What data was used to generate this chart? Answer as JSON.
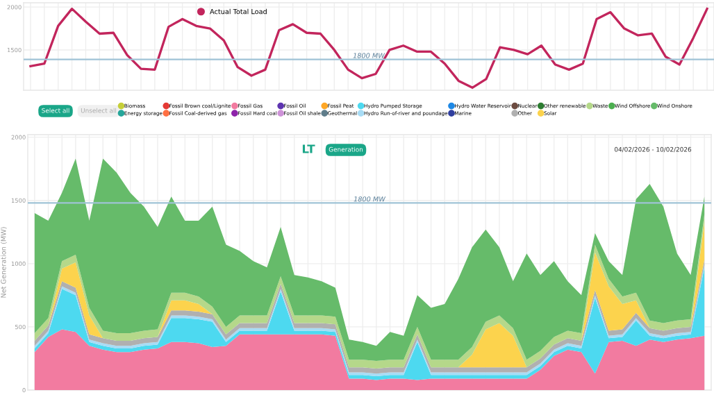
{
  "chart_data": [
    {
      "type": "line",
      "categories": [
        null,
        null,
        null,
        null,
        null,
        null,
        null,
        null,
        null,
        null,
        null,
        null,
        null,
        null,
        null,
        null,
        null,
        null,
        null,
        null,
        null,
        null,
        null,
        null,
        null,
        null,
        null,
        null,
        null,
        null,
        null,
        null,
        null,
        null,
        null,
        null,
        null,
        null,
        null,
        null,
        null,
        null,
        null,
        null,
        null,
        null,
        null,
        null,
        null,
        null
      ],
      "series": [
        {
          "name": "Actual Total Load",
          "color": "#c2255c",
          "values": [
            1310,
            1340,
            1780,
            1980,
            1830,
            1690,
            1700,
            1440,
            1280,
            1270,
            1770,
            1860,
            1780,
            1750,
            1610,
            1300,
            1200,
            1270,
            1730,
            1800,
            1700,
            1690,
            1500,
            1270,
            1170,
            1220,
            1500,
            1550,
            1480,
            1480,
            1340,
            1140,
            1060,
            1160,
            1530,
            1500,
            1450,
            1550,
            1330,
            1270,
            1340,
            1860,
            1940,
            1750,
            1670,
            1690,
            1420,
            1330,
            1640,
            1980
          ]
        }
      ],
      "ylim": [
        1030,
        2050
      ],
      "yticks": [
        1500,
        2000
      ],
      "ref_lines": [
        {
          "axis": "y",
          "value": 1390,
          "label": "1800 MW",
          "color": "#9fc3d6"
        }
      ],
      "grid": true,
      "legend": "top",
      "marker": "none",
      "line_style": "solid"
    },
    {
      "type": "area",
      "stacked": true,
      "ylabel": "Net Generation (MW)",
      "categories": [
        null,
        null,
        null,
        null,
        null,
        null,
        null,
        null,
        null,
        null,
        null,
        null,
        null,
        null,
        null,
        null,
        null,
        null,
        null,
        null,
        null,
        null,
        null,
        null,
        null,
        null,
        null,
        null,
        null,
        null,
        null,
        null,
        null,
        null,
        null,
        null,
        null,
        null,
        null,
        null,
        null,
        null,
        null,
        null,
        null,
        null,
        null,
        null,
        null,
        null
      ],
      "series": [
        {
          "name": "Biomass",
          "color": "#c6cf3a",
          "values": [
            null,
            null,
            null,
            null,
            null,
            null,
            null,
            null,
            null,
            null,
            null,
            null,
            null,
            null,
            null,
            null,
            null,
            null,
            null,
            null,
            null,
            null,
            null,
            null,
            null,
            null,
            null,
            null,
            null,
            null,
            null,
            null,
            null,
            null,
            null,
            null,
            null,
            null,
            null,
            null,
            null,
            null,
            null,
            null,
            null,
            null,
            null,
            null,
            null,
            null
          ]
        },
        {
          "name": "Energy storage",
          "color": "#26a69a",
          "values": [
            null,
            null,
            null,
            null,
            null,
            null,
            null,
            null,
            null,
            null,
            null,
            null,
            null,
            null,
            null,
            null,
            null,
            null,
            null,
            null,
            null,
            null,
            null,
            null,
            null,
            null,
            null,
            null,
            null,
            null,
            null,
            null,
            null,
            null,
            null,
            null,
            null,
            null,
            null,
            null,
            null,
            null,
            null,
            null,
            null,
            null,
            null,
            null,
            null,
            null
          ]
        },
        {
          "name": "Fossil Brown coal/Lignite",
          "color": "#e53935",
          "values": [
            null,
            null,
            null,
            null,
            null,
            null,
            null,
            null,
            null,
            null,
            null,
            null,
            null,
            null,
            null,
            null,
            null,
            null,
            null,
            null,
            null,
            null,
            null,
            null,
            null,
            null,
            null,
            null,
            null,
            null,
            null,
            null,
            null,
            null,
            null,
            null,
            null,
            null,
            null,
            null,
            null,
            null,
            null,
            null,
            null,
            null,
            null,
            null,
            null,
            null
          ]
        },
        {
          "name": "Fossil Coal-derived gas",
          "color": "#ff7043",
          "values": [
            null,
            null,
            null,
            null,
            null,
            null,
            null,
            null,
            null,
            null,
            null,
            null,
            null,
            null,
            null,
            null,
            null,
            null,
            null,
            null,
            null,
            null,
            null,
            null,
            null,
            null,
            null,
            null,
            null,
            null,
            null,
            null,
            null,
            null,
            null,
            null,
            null,
            null,
            null,
            null,
            null,
            null,
            null,
            null,
            null,
            null,
            null,
            null,
            null,
            null
          ]
        },
        {
          "name": "Fossil Gas",
          "color": "#f27ba0",
          "values": [
            300,
            420,
            480,
            460,
            350,
            320,
            300,
            300,
            320,
            330,
            380,
            380,
            370,
            340,
            350,
            440,
            440,
            440,
            440,
            440,
            440,
            440,
            430,
            90,
            90,
            80,
            90,
            90,
            80,
            90,
            90,
            90,
            90,
            90,
            90,
            90,
            90,
            160,
            270,
            320,
            300,
            130,
            380,
            390,
            350,
            400,
            380,
            400,
            410,
            430
          ]
        },
        {
          "name": "Fossil Hard coal",
          "color": "#8e24aa",
          "values": [
            null,
            null,
            null,
            null,
            null,
            null,
            null,
            null,
            null,
            null,
            null,
            null,
            null,
            null,
            null,
            null,
            null,
            null,
            null,
            null,
            null,
            null,
            null,
            null,
            null,
            null,
            null,
            null,
            null,
            null,
            null,
            null,
            null,
            null,
            null,
            null,
            null,
            null,
            null,
            null,
            null,
            null,
            null,
            null,
            null,
            null,
            null,
            null,
            null,
            null
          ]
        },
        {
          "name": "Fossil Oil",
          "color": "#5e35b1",
          "values": [
            null,
            null,
            null,
            null,
            null,
            null,
            null,
            null,
            null,
            null,
            null,
            null,
            null,
            null,
            null,
            null,
            null,
            null,
            null,
            null,
            null,
            null,
            null,
            null,
            null,
            null,
            null,
            null,
            null,
            null,
            null,
            null,
            null,
            null,
            null,
            null,
            null,
            null,
            null,
            null,
            null,
            null,
            null,
            null,
            null,
            null,
            null,
            null,
            null,
            null
          ]
        },
        {
          "name": "Fossil Oil shale",
          "color": "#ce93d8",
          "values": [
            null,
            null,
            null,
            null,
            null,
            null,
            null,
            null,
            null,
            null,
            null,
            null,
            null,
            null,
            null,
            null,
            null,
            null,
            null,
            null,
            null,
            null,
            null,
            null,
            null,
            null,
            null,
            null,
            null,
            null,
            null,
            null,
            null,
            null,
            null,
            null,
            null,
            null,
            null,
            null,
            null,
            null,
            null,
            null,
            null,
            null,
            null,
            null,
            null,
            null
          ]
        },
        {
          "name": "Fossil Peat",
          "color": "#ffa726",
          "values": [
            null,
            null,
            null,
            null,
            null,
            null,
            null,
            null,
            null,
            null,
            null,
            null,
            null,
            null,
            null,
            null,
            null,
            null,
            null,
            null,
            null,
            null,
            null,
            null,
            null,
            null,
            null,
            null,
            null,
            null,
            null,
            null,
            null,
            null,
            null,
            null,
            null,
            null,
            null,
            null,
            null,
            null,
            null,
            null,
            null,
            null,
            null,
            null,
            null,
            null
          ]
        },
        {
          "name": "Geothermal",
          "color": "#607d8b",
          "values": [
            null,
            null,
            null,
            null,
            null,
            null,
            null,
            null,
            null,
            null,
            null,
            null,
            null,
            null,
            null,
            null,
            null,
            null,
            null,
            null,
            null,
            null,
            null,
            null,
            null,
            null,
            null,
            null,
            null,
            null,
            null,
            null,
            null,
            null,
            null,
            null,
            null,
            null,
            null,
            null,
            null,
            null,
            null,
            null,
            null,
            null,
            null,
            null,
            null,
            null
          ]
        },
        {
          "name": "Hydro Pumped Storage",
          "color": "#4dd9f0",
          "values": [
            30,
            30,
            320,
            290,
            30,
            30,
            30,
            30,
            30,
            30,
            190,
            190,
            190,
            200,
            30,
            30,
            30,
            30,
            340,
            30,
            30,
            30,
            30,
            30,
            30,
            30,
            30,
            30,
            300,
            30,
            30,
            30,
            30,
            30,
            30,
            30,
            30,
            30,
            30,
            30,
            30,
            600,
            30,
            30,
            200,
            30,
            30,
            30,
            30,
            540
          ]
        },
        {
          "name": "Hydro Run-of-river and poundage",
          "color": "#a8dcf5",
          "values": [
            20,
            20,
            20,
            20,
            20,
            20,
            20,
            20,
            20,
            20,
            20,
            20,
            20,
            20,
            20,
            20,
            20,
            20,
            20,
            20,
            20,
            20,
            20,
            20,
            20,
            20,
            20,
            20,
            20,
            20,
            20,
            20,
            20,
            20,
            20,
            20,
            20,
            20,
            20,
            20,
            20,
            20,
            20,
            20,
            20,
            20,
            20,
            20,
            20,
            20
          ]
        },
        {
          "name": "Hydro Water Reservoir",
          "color": "#1e88e5",
          "values": [
            null,
            null,
            null,
            null,
            null,
            null,
            null,
            null,
            null,
            null,
            null,
            null,
            null,
            null,
            null,
            null,
            null,
            null,
            null,
            null,
            null,
            null,
            null,
            null,
            null,
            null,
            null,
            null,
            null,
            null,
            null,
            null,
            null,
            null,
            null,
            null,
            null,
            null,
            null,
            null,
            null,
            null,
            null,
            null,
            null,
            null,
            null,
            null,
            null,
            null
          ]
        },
        {
          "name": "Marine",
          "color": "#303f9f",
          "values": [
            null,
            null,
            null,
            null,
            null,
            null,
            null,
            null,
            null,
            null,
            null,
            null,
            null,
            null,
            null,
            null,
            null,
            null,
            null,
            null,
            null,
            null,
            null,
            null,
            null,
            null,
            null,
            null,
            null,
            null,
            null,
            null,
            null,
            null,
            null,
            null,
            null,
            null,
            null,
            null,
            null,
            null,
            null,
            null,
            null,
            null,
            null,
            null,
            null,
            null
          ]
        },
        {
          "name": "Nuclear",
          "color": "#6d4c41",
          "values": [
            null,
            null,
            null,
            null,
            null,
            null,
            null,
            null,
            null,
            null,
            null,
            null,
            null,
            null,
            null,
            null,
            null,
            null,
            null,
            null,
            null,
            null,
            null,
            null,
            null,
            null,
            null,
            null,
            null,
            null,
            null,
            null,
            null,
            null,
            null,
            null,
            null,
            null,
            null,
            null,
            null,
            null,
            null,
            null,
            null,
            null,
            null,
            null,
            null,
            null
          ]
        },
        {
          "name": "Other",
          "color": "#b0b0b0",
          "values": [
            40,
            40,
            40,
            40,
            40,
            40,
            40,
            40,
            40,
            40,
            40,
            40,
            40,
            40,
            40,
            40,
            40,
            40,
            40,
            40,
            40,
            40,
            40,
            40,
            40,
            40,
            40,
            40,
            40,
            40,
            40,
            40,
            40,
            40,
            40,
            40,
            40,
            40,
            40,
            40,
            40,
            40,
            40,
            40,
            40,
            40,
            40,
            40,
            40,
            40
          ]
        },
        {
          "name": "Other renewable",
          "color": "#2e7d32",
          "values": [
            null,
            null,
            null,
            null,
            null,
            null,
            null,
            null,
            null,
            null,
            null,
            null,
            null,
            null,
            null,
            null,
            null,
            null,
            null,
            null,
            null,
            null,
            null,
            null,
            null,
            null,
            null,
            null,
            null,
            null,
            null,
            null,
            null,
            null,
            null,
            null,
            null,
            null,
            null,
            null,
            null,
            null,
            null,
            null,
            null,
            null,
            null,
            null,
            null,
            null
          ]
        },
        {
          "name": "Solar",
          "color": "#fcd34d",
          "values": [
            0,
            0,
            100,
            200,
            150,
            0,
            0,
            0,
            0,
            0,
            80,
            80,
            60,
            0,
            0,
            0,
            0,
            0,
            0,
            0,
            0,
            0,
            0,
            0,
            0,
            0,
            0,
            0,
            0,
            0,
            0,
            0,
            100,
            300,
            350,
            250,
            0,
            0,
            0,
            0,
            0,
            300,
            350,
            200,
            100,
            0,
            0,
            0,
            0,
            300
          ]
        },
        {
          "name": "Waste",
          "color": "#b5d88a",
          "values": [
            60,
            60,
            60,
            60,
            60,
            60,
            60,
            60,
            60,
            60,
            60,
            60,
            60,
            60,
            60,
            60,
            60,
            60,
            60,
            60,
            60,
            60,
            60,
            60,
            60,
            60,
            60,
            60,
            60,
            60,
            60,
            60,
            60,
            60,
            60,
            60,
            60,
            60,
            60,
            60,
            60,
            60,
            60,
            60,
            60,
            60,
            60,
            60,
            60,
            60
          ]
        },
        {
          "name": "Wind Offshore",
          "color": "#4caf50",
          "values": [
            null,
            null,
            null,
            null,
            null,
            null,
            null,
            null,
            null,
            null,
            null,
            null,
            null,
            null,
            null,
            null,
            null,
            null,
            null,
            null,
            null,
            null,
            null,
            null,
            null,
            null,
            null,
            null,
            null,
            null,
            null,
            null,
            null,
            null,
            null,
            null,
            null,
            null,
            null,
            null,
            null,
            null,
            null,
            null,
            null,
            null,
            null,
            null,
            null,
            null
          ]
        },
        {
          "name": "Wind Onshore",
          "color": "#66bb6a",
          "values": [
            950,
            770,
            540,
            760,
            690,
            1360,
            1270,
            1110,
            980,
            810,
            760,
            570,
            600,
            790,
            650,
            510,
            430,
            380,
            390,
            320,
            300,
            270,
            230,
            160,
            140,
            120,
            220,
            190,
            250,
            410,
            440,
            640,
            790,
            730,
            540,
            370,
            840,
            600,
            600,
            390,
            300,
            90,
            140,
            170,
            740,
            1080,
            920,
            530,
            350,
            140
          ]
        }
      ],
      "ylim": [
        0,
        2020
      ],
      "yticks": [
        0,
        500,
        1000,
        1500,
        2000
      ],
      "ref_lines": [
        {
          "axis": "y",
          "value": 1480,
          "label": "1800 MW",
          "color": "#9fc3d6"
        }
      ],
      "annotations": [
        "Select all",
        "Unselect all",
        "LT",
        "Generation",
        "04/02/2026 - 10/02/2026"
      ],
      "grid": true,
      "legend": "top"
    }
  ]
}
